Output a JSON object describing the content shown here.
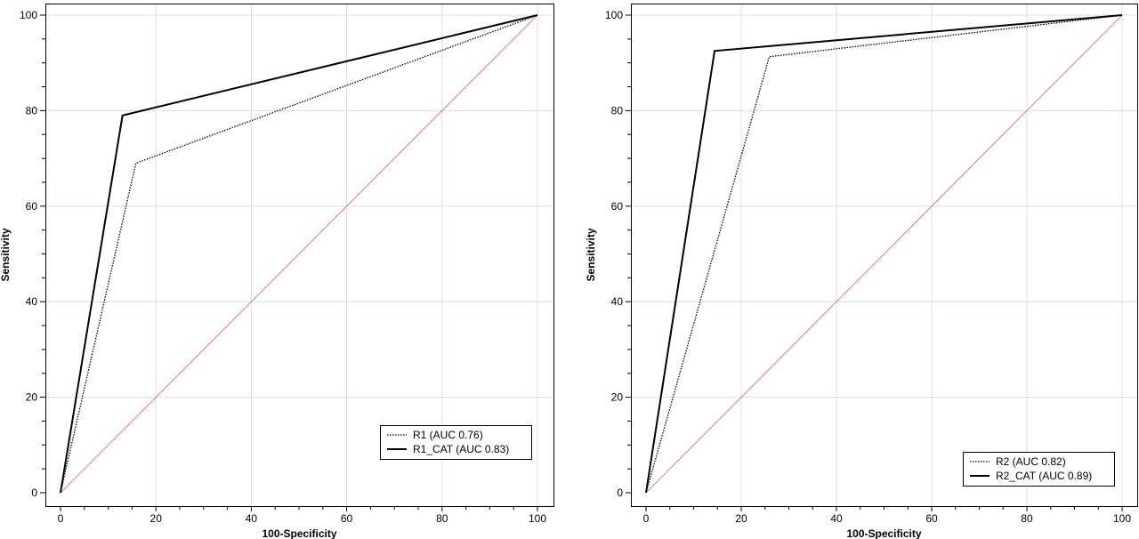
{
  "chart_data": [
    {
      "type": "line",
      "title": "",
      "xlabel": "100-Specificity",
      "ylabel": "Sensitivity",
      "xlim": [
        0,
        100
      ],
      "ylim": [
        0,
        100
      ],
      "x_ticks": [
        0,
        20,
        40,
        60,
        80,
        100
      ],
      "y_ticks": [
        0,
        20,
        40,
        60,
        80,
        100
      ],
      "grid": true,
      "legend_position": "bottom-right",
      "series": [
        {
          "name": "R1 (AUC 0.76)",
          "style": "dotted",
          "color": "#000000",
          "x": [
            0,
            15.8,
            100
          ],
          "y": [
            0,
            69,
            100
          ]
        },
        {
          "name": "R1_CAT (AUC 0.83)",
          "style": "solid",
          "color": "#000000",
          "x": [
            0,
            13,
            100
          ],
          "y": [
            0,
            79,
            100
          ]
        }
      ],
      "reference_line": {
        "style": "diagonal",
        "color": "#e8555a",
        "x": [
          0,
          100
        ],
        "y": [
          0,
          100
        ]
      }
    },
    {
      "type": "line",
      "title": "",
      "xlabel": "100-Specificity",
      "ylabel": "Sensitivity",
      "xlim": [
        0,
        100
      ],
      "ylim": [
        0,
        100
      ],
      "x_ticks": [
        0,
        20,
        40,
        60,
        80,
        100
      ],
      "y_ticks": [
        0,
        20,
        40,
        60,
        80,
        100
      ],
      "grid": true,
      "legend_position": "bottom-right",
      "series": [
        {
          "name": "R2 (AUC 0.82)",
          "style": "dotted",
          "color": "#000000",
          "x": [
            0,
            25.9,
            100
          ],
          "y": [
            0,
            91.3,
            100
          ]
        },
        {
          "name": "R2_CAT (AUC 0.89)",
          "style": "solid",
          "color": "#000000",
          "x": [
            0,
            14.4,
            100
          ],
          "y": [
            0,
            92.5,
            100
          ]
        }
      ],
      "reference_line": {
        "style": "diagonal",
        "color": "#e8555a",
        "x": [
          0,
          100
        ],
        "y": [
          0,
          100
        ]
      }
    }
  ]
}
